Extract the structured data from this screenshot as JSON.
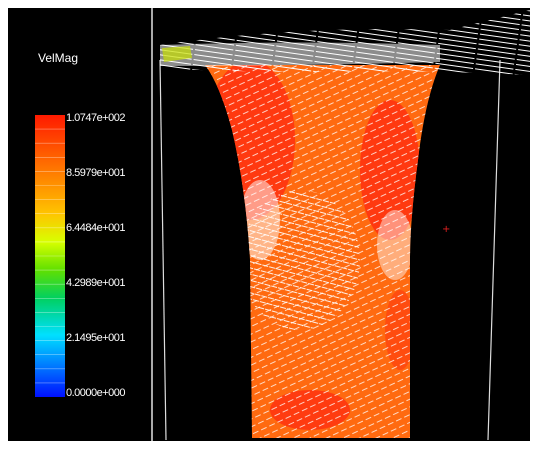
{
  "legend": {
    "title": "VelMag",
    "labels": [
      "1.0747e+002",
      "8.5979e+001",
      "6.4484e+001",
      "4.2989e+001",
      "2.1495e+001",
      "0.0000e+000"
    ]
  }
}
